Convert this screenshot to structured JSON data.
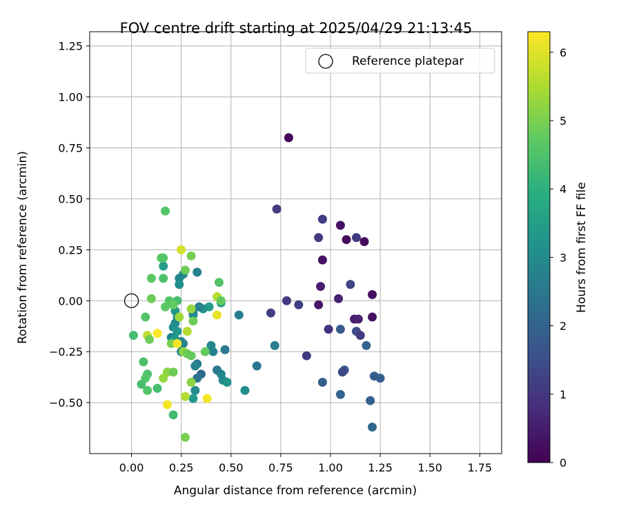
{
  "chart_data": {
    "type": "scatter",
    "title": "FOV centre drift starting at 2025/04/29 21:13:45",
    "xlabel": "Angular distance from reference (arcmin)",
    "ylabel": "Rotation from reference (arcmin)",
    "xlim": [
      -0.21,
      1.86
    ],
    "ylim": [
      -0.75,
      1.32
    ],
    "xticks": [
      "0.00",
      "0.25",
      "0.50",
      "0.75",
      "1.00",
      "1.25",
      "1.50",
      "1.75"
    ],
    "yticks": [
      "−0.50",
      "−0.25",
      "0.00",
      "0.25",
      "0.50",
      "0.75",
      "1.00",
      "1.25"
    ],
    "grid": true,
    "legend": {
      "label": "Reference platepar",
      "placement": "top-right"
    },
    "reference_point": [
      0.0,
      0.0
    ],
    "colorbar": {
      "label": "Hours from first FF file",
      "range": [
        0,
        6.3
      ],
      "ticks": [
        "0",
        "1",
        "2",
        "3",
        "4",
        "5",
        "6"
      ],
      "colormap": "viridis"
    },
    "points": [
      [
        0.79,
        0.8,
        0.1
      ],
      [
        0.73,
        0.45,
        1.1
      ],
      [
        0.96,
        0.4,
        1.1
      ],
      [
        1.05,
        0.37,
        0.3
      ],
      [
        1.08,
        0.3,
        0.2
      ],
      [
        1.13,
        0.31,
        1.1
      ],
      [
        1.17,
        0.29,
        0.2
      ],
      [
        0.94,
        0.31,
        1.1
      ],
      [
        0.96,
        0.2,
        0.3
      ],
      [
        1.1,
        0.08,
        1.3
      ],
      [
        0.95,
        0.07,
        0.5
      ],
      [
        1.21,
        0.03,
        0.3
      ],
      [
        0.78,
        0.0,
        1.1
      ],
      [
        0.84,
        -0.02,
        1.2
      ],
      [
        0.94,
        -0.02,
        0.4
      ],
      [
        1.04,
        0.01,
        0.6
      ],
      [
        0.7,
        -0.06,
        1.2
      ],
      [
        1.12,
        -0.09,
        0.5
      ],
      [
        1.14,
        -0.09,
        0.6
      ],
      [
        1.21,
        -0.08,
        0.3
      ],
      [
        0.99,
        -0.14,
        0.9
      ],
      [
        1.05,
        -0.14,
        1.8
      ],
      [
        1.13,
        -0.15,
        1.5
      ],
      [
        1.15,
        -0.17,
        1.1
      ],
      [
        1.18,
        -0.22,
        2.0
      ],
      [
        0.88,
        -0.27,
        1.1
      ],
      [
        0.72,
        -0.22,
        2.7
      ],
      [
        1.07,
        -0.34,
        1.7
      ],
      [
        1.06,
        -0.35,
        1.4
      ],
      [
        1.22,
        -0.37,
        1.8
      ],
      [
        1.25,
        -0.38,
        1.9
      ],
      [
        0.96,
        -0.4,
        1.9
      ],
      [
        1.05,
        -0.46,
        2.0
      ],
      [
        1.2,
        -0.49,
        2.0
      ],
      [
        1.21,
        -0.62,
        2.1
      ],
      [
        0.54,
        -0.07,
        2.7
      ],
      [
        0.47,
        -0.24,
        2.6
      ],
      [
        0.63,
        -0.32,
        2.5
      ],
      [
        0.57,
        -0.44,
        3.1
      ],
      [
        0.46,
        -0.39,
        2.9
      ],
      [
        0.48,
        -0.4,
        3.2
      ],
      [
        0.45,
        -0.36,
        3.0
      ],
      [
        0.43,
        -0.34,
        2.6
      ],
      [
        0.4,
        -0.22,
        3.0
      ],
      [
        0.41,
        -0.25,
        2.8
      ],
      [
        0.35,
        -0.36,
        2.2
      ],
      [
        0.33,
        -0.31,
        2.6
      ],
      [
        0.32,
        -0.32,
        2.8
      ],
      [
        0.33,
        -0.38,
        2.4
      ],
      [
        0.32,
        -0.44,
        3.0
      ],
      [
        0.31,
        -0.48,
        3.4
      ],
      [
        0.33,
        0.14,
        2.8
      ],
      [
        0.26,
        0.13,
        2.9
      ],
      [
        0.24,
        0.11,
        2.9
      ],
      [
        0.24,
        0.08,
        3.1
      ],
      [
        0.16,
        0.17,
        3.5
      ],
      [
        0.45,
        -0.01,
        3.6
      ],
      [
        0.39,
        -0.03,
        3.5
      ],
      [
        0.36,
        -0.04,
        3.2
      ],
      [
        0.34,
        -0.03,
        2.8
      ],
      [
        0.31,
        -0.06,
        3.1
      ],
      [
        0.31,
        -0.07,
        3.0
      ],
      [
        0.22,
        -0.05,
        3.4
      ],
      [
        0.23,
        -0.08,
        3.2
      ],
      [
        0.22,
        -0.11,
        3.0
      ],
      [
        0.21,
        -0.13,
        3.1
      ],
      [
        0.23,
        -0.15,
        3.3
      ],
      [
        0.2,
        -0.18,
        2.9
      ],
      [
        0.22,
        -0.19,
        3.4
      ],
      [
        0.25,
        -0.2,
        3.1
      ],
      [
        0.26,
        -0.21,
        2.8
      ],
      [
        0.25,
        -0.25,
        2.7
      ],
      [
        0.17,
        0.44,
        4.6
      ],
      [
        0.15,
        0.21,
        4.7
      ],
      [
        0.16,
        0.21,
        4.6
      ],
      [
        0.1,
        0.11,
        4.7
      ],
      [
        0.16,
        0.11,
        4.5
      ],
      [
        0.25,
        0.25,
        5.9
      ],
      [
        0.3,
        0.22,
        5.0
      ],
      [
        0.27,
        0.15,
        4.9
      ],
      [
        0.44,
        0.09,
        4.6
      ],
      [
        0.43,
        0.02,
        5.6
      ],
      [
        0.45,
        0.0,
        4.8
      ],
      [
        0.43,
        -0.07,
        6.1
      ],
      [
        0.1,
        0.01,
        4.9
      ],
      [
        0.19,
        0.0,
        4.6
      ],
      [
        0.23,
        0.0,
        4.4
      ],
      [
        0.21,
        -0.02,
        4.8
      ],
      [
        0.17,
        -0.03,
        4.7
      ],
      [
        0.3,
        -0.04,
        5.3
      ],
      [
        0.24,
        -0.08,
        5.4
      ],
      [
        0.31,
        -0.1,
        4.9
      ],
      [
        0.07,
        -0.08,
        4.6
      ],
      [
        0.01,
        -0.17,
        4.4
      ],
      [
        0.08,
        -0.17,
        5.7
      ],
      [
        0.09,
        -0.19,
        4.9
      ],
      [
        0.13,
        -0.16,
        6.3
      ],
      [
        0.28,
        -0.15,
        5.6
      ],
      [
        0.2,
        -0.21,
        5.0
      ],
      [
        0.23,
        -0.21,
        6.2
      ],
      [
        0.26,
        -0.25,
        5.2
      ],
      [
        0.28,
        -0.26,
        4.9
      ],
      [
        0.3,
        -0.27,
        4.8
      ],
      [
        0.37,
        -0.25,
        4.8
      ],
      [
        0.06,
        -0.3,
        4.5
      ],
      [
        0.08,
        -0.36,
        4.5
      ],
      [
        0.07,
        -0.38,
        4.6
      ],
      [
        0.05,
        -0.41,
        4.4
      ],
      [
        0.08,
        -0.44,
        4.6
      ],
      [
        0.13,
        -0.43,
        4.4
      ],
      [
        0.16,
        -0.38,
        5.3
      ],
      [
        0.18,
        -0.35,
        5.2
      ],
      [
        0.21,
        -0.35,
        4.9
      ],
      [
        0.3,
        -0.4,
        5.2
      ],
      [
        0.21,
        -0.56,
        4.3
      ],
      [
        0.27,
        -0.47,
        5.6
      ],
      [
        0.38,
        -0.48,
        6.2
      ],
      [
        0.18,
        -0.51,
        6.2
      ],
      [
        0.27,
        -0.67,
        5.0
      ]
    ]
  }
}
